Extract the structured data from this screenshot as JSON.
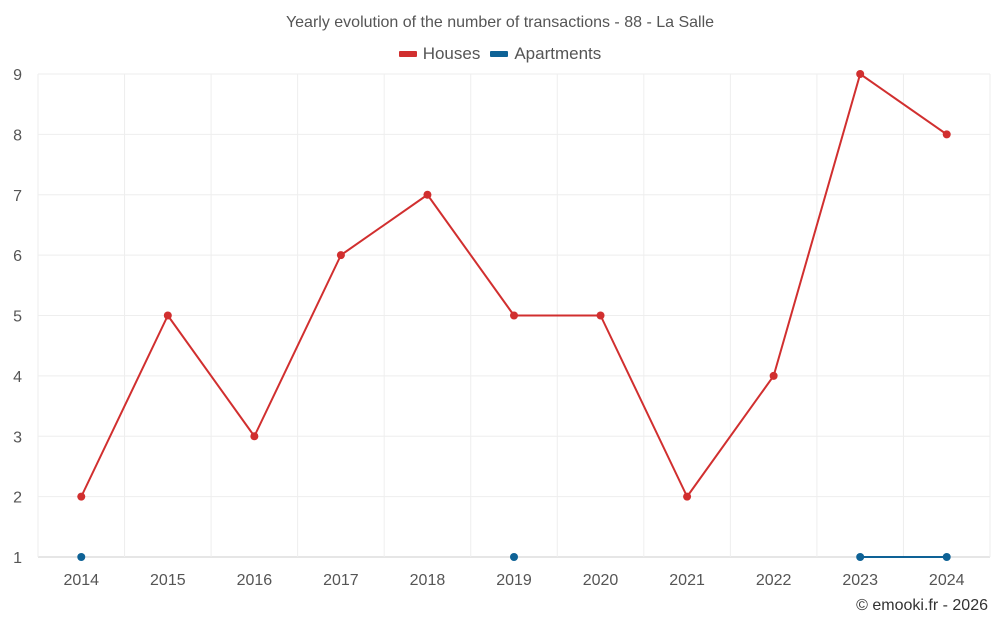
{
  "chart_data": {
    "type": "line",
    "title": "Yearly evolution of the number of transactions - 88 - La Salle",
    "categories": [
      "2014",
      "2015",
      "2016",
      "2017",
      "2018",
      "2019",
      "2020",
      "2021",
      "2022",
      "2023",
      "2024"
    ],
    "series": [
      {
        "name": "Houses",
        "color": "#d12f2f",
        "values": [
          2,
          5,
          3,
          6,
          7,
          5,
          5,
          2,
          4,
          9,
          8
        ]
      },
      {
        "name": "Apartments",
        "color": "#0e6296",
        "values": [
          1,
          null,
          null,
          null,
          null,
          1,
          null,
          null,
          null,
          1,
          1
        ]
      }
    ],
    "xlabel": "",
    "ylabel": "",
    "ylim": [
      1,
      9
    ],
    "yticks": [
      "1",
      "2",
      "3",
      "4",
      "5",
      "6",
      "7",
      "8",
      "9"
    ],
    "grid": true,
    "legend_position": "top-center"
  },
  "credit": "© emooki.fr - 2026"
}
